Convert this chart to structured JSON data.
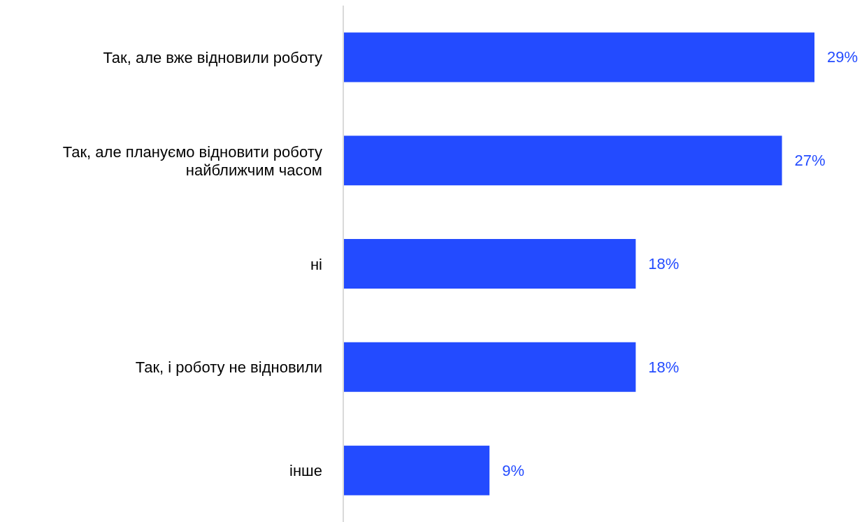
{
  "chart_data": {
    "type": "bar",
    "orientation": "horizontal",
    "categories": [
      "Так, але вже відновили роботу",
      "Так, але плануємо відновити роботу найближчим часом",
      "ні",
      "Так, і роботу не відновили",
      "інше"
    ],
    "values": [
      29,
      27,
      18,
      18,
      9
    ],
    "value_labels": [
      "29%",
      "27%",
      "18%",
      "18%",
      "9%"
    ],
    "color": "#234bff"
  }
}
